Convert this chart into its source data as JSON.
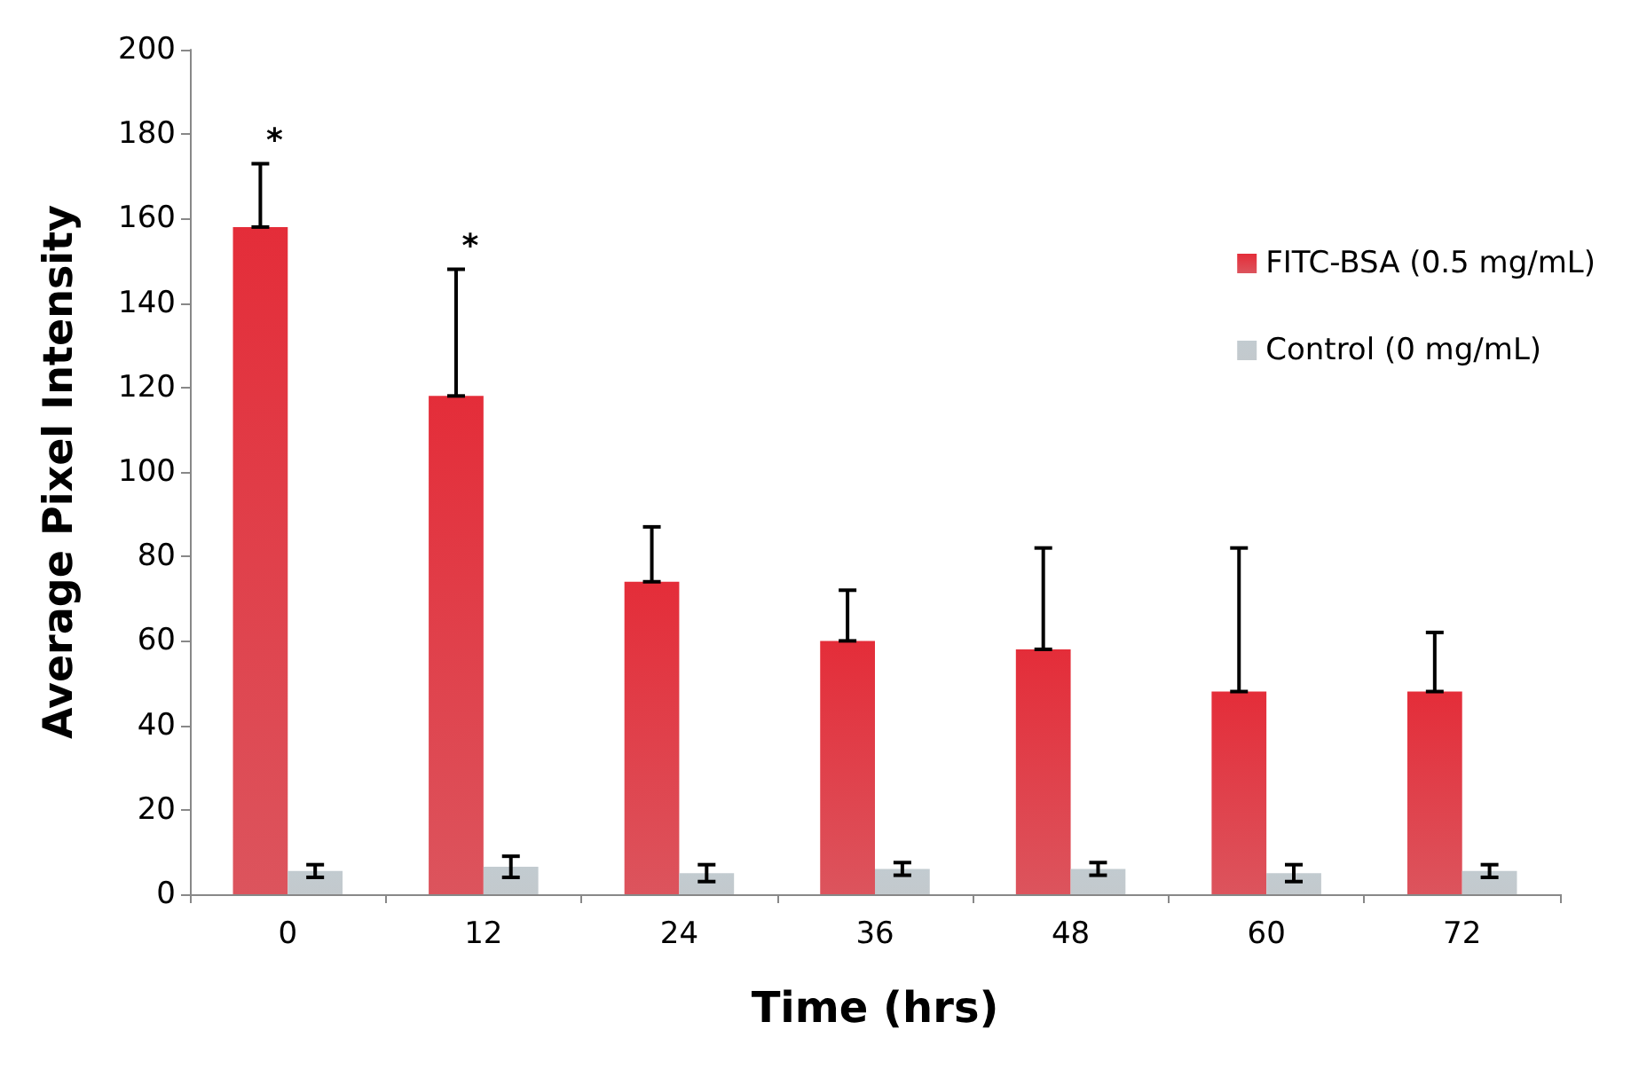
{
  "chart_data": {
    "type": "bar",
    "xlabel": "Time (hrs)",
    "ylabel": "Average Pixel Intensity",
    "categories": [
      "0",
      "12",
      "24",
      "36",
      "48",
      "60",
      "72"
    ],
    "series": [
      {
        "name": "FITC-BSA (0.5 mg/mL)",
        "color": "#d42a35",
        "values": [
          158,
          118,
          74,
          60,
          58,
          48,
          48
        ],
        "errors": [
          [
            158,
            173
          ],
          [
            118,
            148
          ],
          [
            74,
            87
          ],
          [
            60,
            72
          ],
          [
            58,
            82
          ],
          [
            48,
            82
          ],
          [
            48,
            62
          ]
        ]
      },
      {
        "name": "Control (0 mg/mL)",
        "color": "#b4bcc1",
        "values": [
          5.5,
          6.5,
          5,
          6,
          6,
          5,
          5.5
        ],
        "errors": [
          1.5,
          2.5,
          2,
          1.5,
          1.5,
          2,
          1.5
        ]
      }
    ],
    "annotations": [
      "*",
      "*"
    ],
    "ylim": [
      0,
      200
    ],
    "yticks": [
      0,
      20,
      40,
      60,
      80,
      100,
      120,
      140,
      160,
      180,
      200
    ],
    "grid": false,
    "legend": "right"
  }
}
